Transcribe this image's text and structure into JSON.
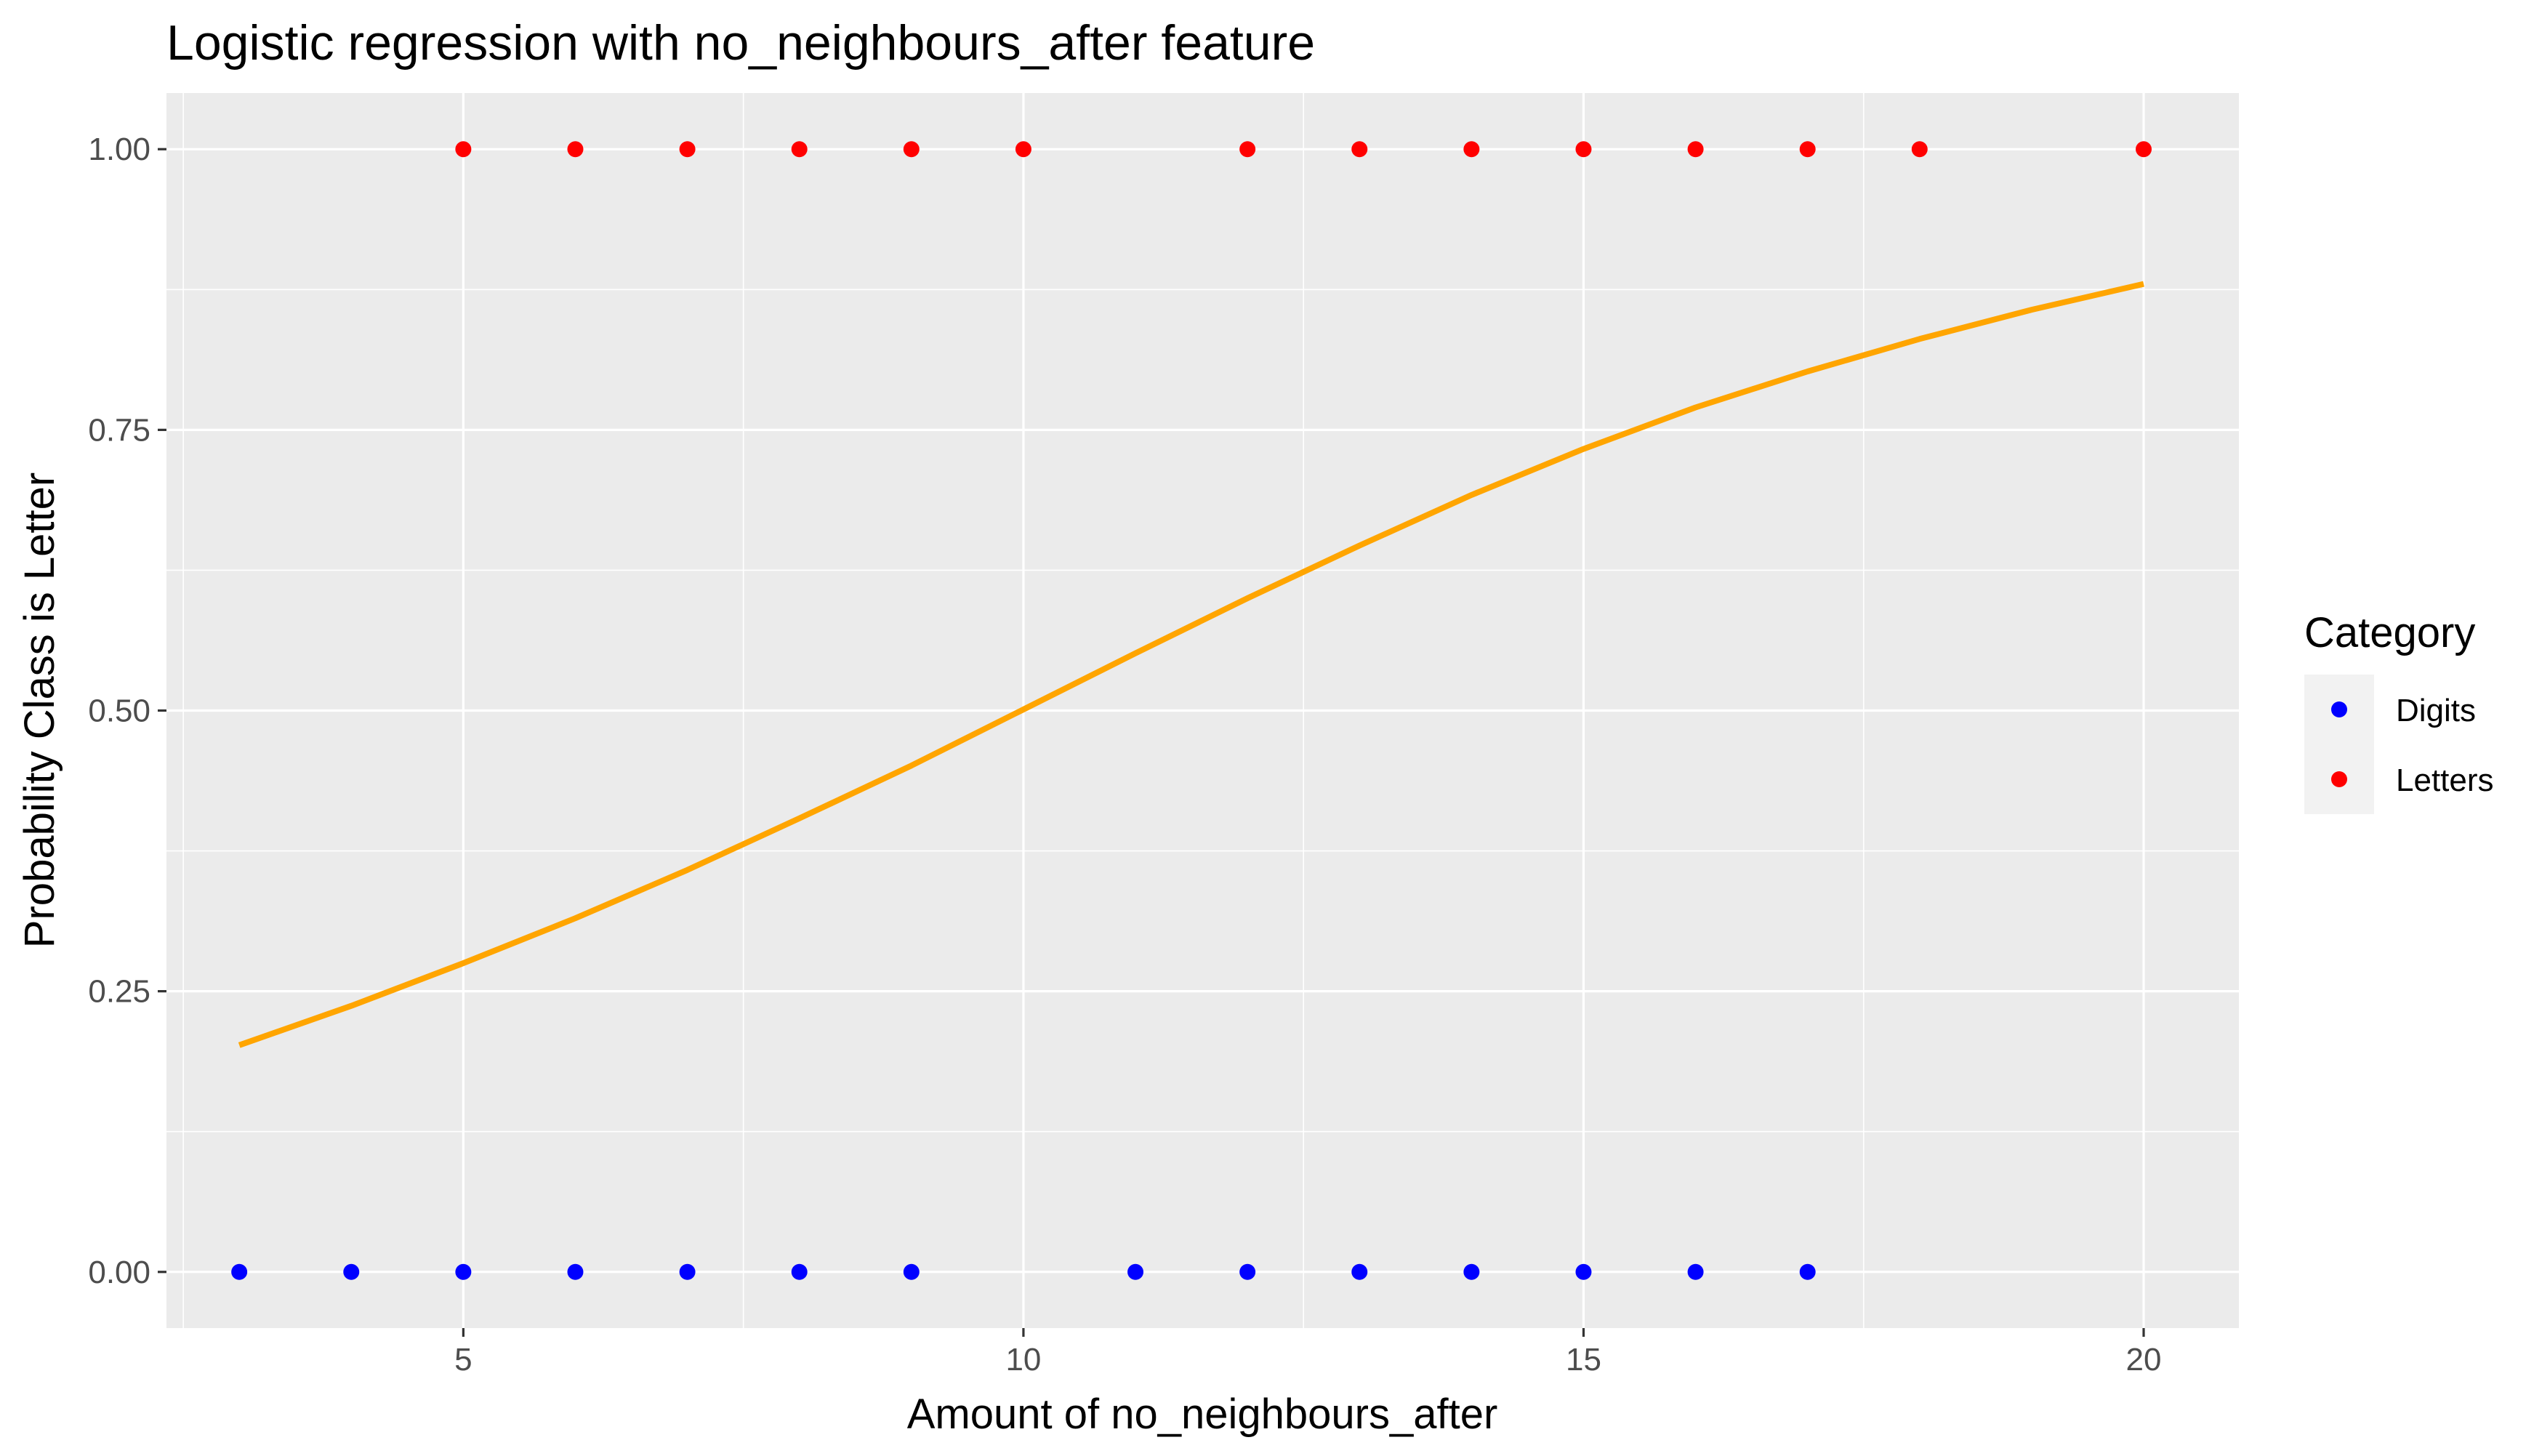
{
  "chart_data": {
    "type": "scatter",
    "title": "Logistic regression with no_neighbours_after feature",
    "xlabel": "Amount of no_neighbours_after",
    "ylabel": "Probability Class is Letter",
    "xlim": [
      2.35,
      20.85
    ],
    "ylim": [
      -0.05,
      1.05
    ],
    "x_ticks": [
      5,
      10,
      15,
      20
    ],
    "x_tick_labels": [
      "5",
      "10",
      "15",
      "20"
    ],
    "y_ticks": [
      0,
      0.25,
      0.5,
      0.75,
      1
    ],
    "y_tick_labels": [
      "0.00",
      "0.25",
      "0.50",
      "0.75",
      "1.00"
    ],
    "grid": true,
    "background": "#ebebeb",
    "legend": {
      "title": "Category",
      "position": "right",
      "entries": [
        {
          "name": "Digits",
          "color": "#0000ff"
        },
        {
          "name": "Letters",
          "color": "#ff0000"
        }
      ]
    },
    "series": [
      {
        "name": "Digits",
        "color": "#0000ff",
        "x": [
          3,
          4,
          5,
          6,
          7,
          8,
          9,
          11,
          12,
          13,
          14,
          15,
          16,
          17
        ],
        "y": [
          0,
          0,
          0,
          0,
          0,
          0,
          0,
          0,
          0,
          0,
          0,
          0,
          0,
          0
        ]
      },
      {
        "name": "Letters",
        "color": "#ff0000",
        "x": [
          5,
          6,
          7,
          8,
          9,
          10,
          12,
          13,
          14,
          15,
          16,
          17,
          18,
          20
        ],
        "y": [
          1,
          1,
          1,
          1,
          1,
          1,
          1,
          1,
          1,
          1,
          1,
          1,
          1,
          1
        ]
      }
    ],
    "fitted_curve": {
      "type": "line",
      "color": "#ffa500",
      "x": [
        3,
        4,
        5,
        6,
        7,
        8,
        9,
        10,
        11,
        12,
        13,
        14,
        15,
        16,
        17,
        18,
        19,
        20
      ],
      "y": [
        0.202,
        0.237,
        0.275,
        0.315,
        0.358,
        0.404,
        0.451,
        0.501,
        0.551,
        0.6,
        0.647,
        0.692,
        0.733,
        0.77,
        0.802,
        0.831,
        0.857,
        0.88
      ]
    }
  }
}
